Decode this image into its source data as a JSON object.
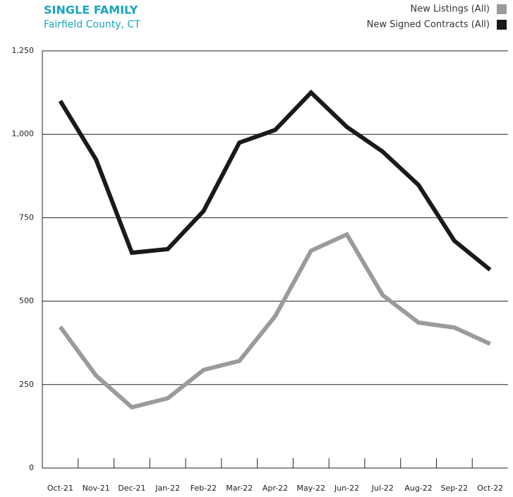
{
  "chart_data": {
    "type": "line",
    "title": "SINGLE FAMILY",
    "subtitle": "Fairfield County, CT",
    "categories": [
      "Oct-21",
      "Nov-21",
      "Dec-21",
      "Jan-22",
      "Feb-22",
      "Mar-22",
      "Apr-22",
      "May-22",
      "Jun-22",
      "Jul-22",
      "Aug-22",
      "Sep-22",
      "Oct-22"
    ],
    "series": [
      {
        "name": "New Listings (All)",
        "color": "#9b9b9b",
        "values": [
          423,
          277,
          182,
          209,
          294,
          321,
          455,
          651,
          700,
          518,
          436,
          421,
          372
        ]
      },
      {
        "name": "New Signed Contracts (All)",
        "color": "#1a1a1a",
        "values": [
          1100,
          924,
          645,
          656,
          770,
          975,
          1013,
          1125,
          1022,
          948,
          848,
          681,
          594
        ]
      }
    ],
    "ylim": [
      0,
      1250
    ],
    "yticks": [
      0,
      250,
      500,
      750,
      {
        "value": 1000,
        "label": "1,000"
      },
      {
        "value": 1250,
        "label": "1,250"
      }
    ],
    "grid": true,
    "legend": "top-right"
  }
}
